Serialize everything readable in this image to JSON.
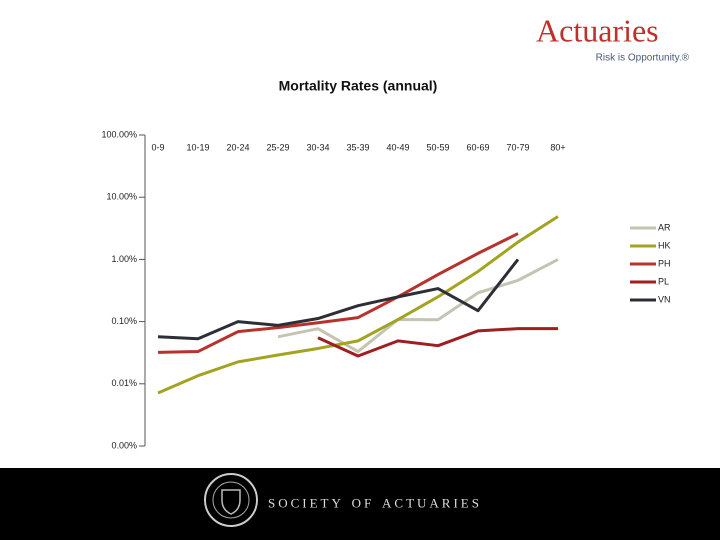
{
  "logo": {
    "name": "Actuaries",
    "tagline": "Risk is Opportunity.®"
  },
  "chart_data": {
    "type": "line",
    "title": "Mortality Rates (annual)",
    "categories": [
      "0-9",
      "10-19",
      "20-24",
      "25-29",
      "30-34",
      "35-39",
      "40-49",
      "50-59",
      "60-69",
      "70-79",
      "80+"
    ],
    "series": [
      {
        "name": "AR",
        "color": "#c4c4b4",
        "values": [
          null,
          null,
          null,
          0.057,
          0.077,
          0.033,
          0.108,
          0.107,
          0.29,
          0.46,
          1.0
        ]
      },
      {
        "name": "HK",
        "color": "#a3a322",
        "values": [
          0.0071,
          0.0135,
          0.0225,
          0.029,
          0.037,
          0.049,
          0.108,
          0.25,
          0.64,
          1.9,
          4.9
        ]
      },
      {
        "name": "PH",
        "color": "#b8322c",
        "values": [
          0.032,
          0.033,
          0.069,
          0.08,
          0.096,
          0.116,
          0.25,
          0.57,
          1.25,
          2.6,
          null
        ]
      },
      {
        "name": "PL",
        "color": "#9e1f1f",
        "values": [
          null,
          null,
          null,
          null,
          0.055,
          0.028,
          0.049,
          0.041,
          0.071,
          0.077,
          0.077
        ]
      },
      {
        "name": "VN",
        "color": "#2e2f36",
        "values": [
          0.057,
          0.053,
          0.1,
          0.087,
          0.112,
          0.18,
          0.25,
          0.34,
          0.15,
          1.0,
          null
        ]
      }
    ],
    "log_scale": true,
    "ylim": [
      0.001,
      100
    ],
    "yticks": [
      {
        "value": 100,
        "label": "100.00%"
      },
      {
        "value": 10,
        "label": "10.00%"
      },
      {
        "value": 1,
        "label": "1.00%"
      },
      {
        "value": 0.1,
        "label": "0.10%"
      },
      {
        "value": 0.01,
        "label": "0.01%"
      },
      {
        "value": 0.001,
        "label": "0.00%"
      }
    ],
    "grid": false,
    "legend": "right"
  },
  "footer": {
    "text": "Society of Actuaries"
  }
}
